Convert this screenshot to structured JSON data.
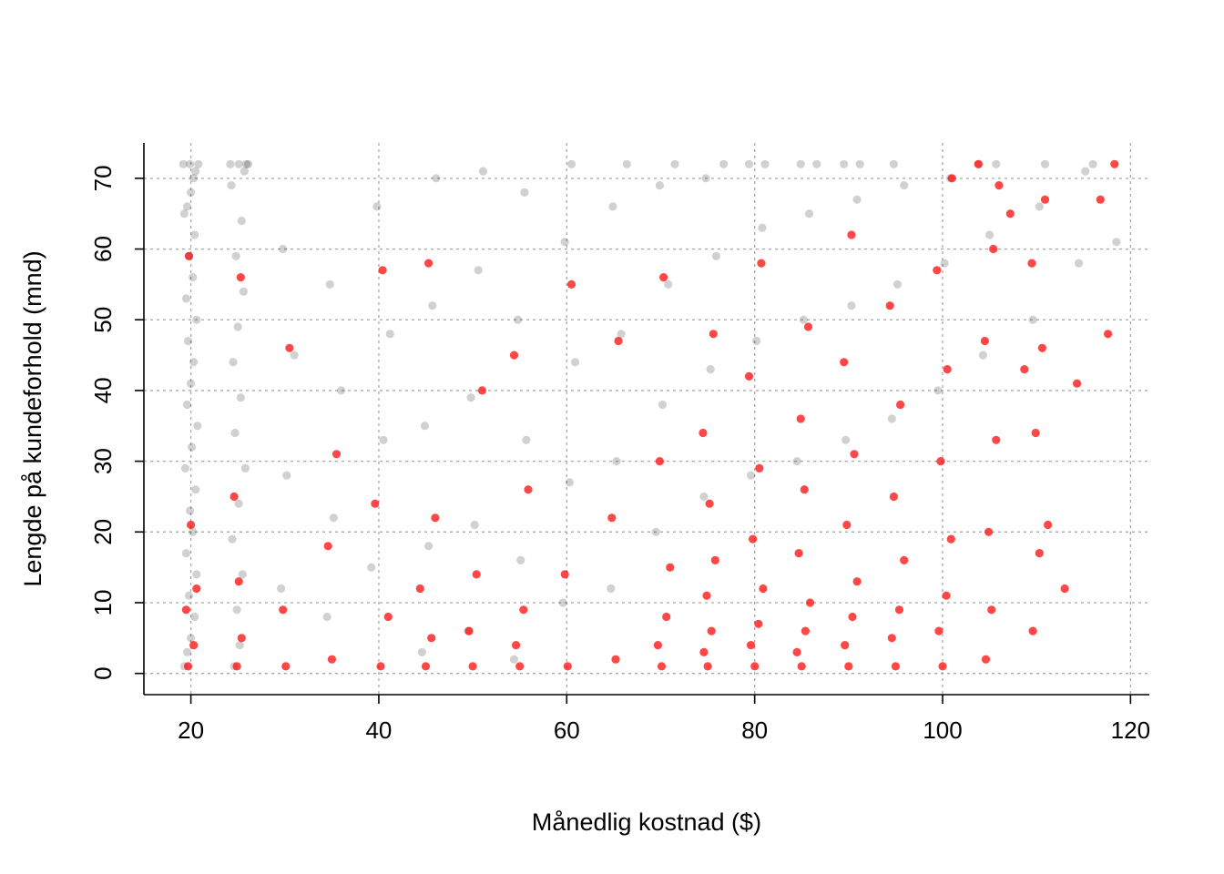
{
  "chart_data": {
    "type": "scatter",
    "title": "",
    "xlabel": "Månedlig kostnad ($)",
    "ylabel": "Lengde på kundeforhold (mnd)",
    "xlim": [
      15,
      122
    ],
    "ylim": [
      -3,
      75
    ],
    "x_ticks": [
      20,
      40,
      60,
      80,
      100,
      120
    ],
    "y_ticks": [
      0,
      10,
      20,
      30,
      40,
      50,
      60,
      70
    ],
    "x_tick_labels": [
      "20",
      "40",
      "60",
      "80",
      "100",
      "120"
    ],
    "y_tick_labels": [
      "0",
      "10",
      "20",
      "30",
      "40",
      "50",
      "60",
      "70"
    ],
    "grid": true,
    "series": [
      {
        "color": "#000000",
        "opacity": 0.18,
        "points": [
          [
            19.3,
            1
          ],
          [
            19.6,
            3
          ],
          [
            20.0,
            5
          ],
          [
            20.4,
            8
          ],
          [
            19.8,
            11
          ],
          [
            20.6,
            14
          ],
          [
            19.5,
            17
          ],
          [
            20.2,
            20
          ],
          [
            19.9,
            23
          ],
          [
            20.5,
            26
          ],
          [
            19.4,
            29
          ],
          [
            20.1,
            32
          ],
          [
            20.7,
            35
          ],
          [
            19.6,
            38
          ],
          [
            20.0,
            41
          ],
          [
            20.3,
            44
          ],
          [
            19.7,
            47
          ],
          [
            20.6,
            50
          ],
          [
            19.5,
            53
          ],
          [
            20.2,
            56
          ],
          [
            19.8,
            59
          ],
          [
            20.4,
            62
          ],
          [
            19.3,
            65
          ],
          [
            20.0,
            68
          ],
          [
            20.5,
            71
          ],
          [
            19.9,
            72
          ],
          [
            20.8,
            72
          ],
          [
            19.2,
            72
          ],
          [
            20.3,
            70
          ],
          [
            19.6,
            66
          ],
          [
            24.6,
            1
          ],
          [
            25.2,
            4
          ],
          [
            24.9,
            9
          ],
          [
            25.5,
            14
          ],
          [
            24.4,
            19
          ],
          [
            25.1,
            24
          ],
          [
            25.8,
            29
          ],
          [
            24.7,
            34
          ],
          [
            25.3,
            39
          ],
          [
            24.5,
            44
          ],
          [
            25.0,
            49
          ],
          [
            25.6,
            54
          ],
          [
            24.8,
            59
          ],
          [
            25.4,
            64
          ],
          [
            24.3,
            69
          ],
          [
            25.1,
            72
          ],
          [
            25.9,
            72
          ],
          [
            24.2,
            72
          ],
          [
            26.1,
            72
          ],
          [
            25.7,
            71
          ],
          [
            29.6,
            12
          ],
          [
            30.2,
            28
          ],
          [
            31.0,
            45
          ],
          [
            29.8,
            60
          ],
          [
            34.5,
            8
          ],
          [
            35.2,
            22
          ],
          [
            36.0,
            40
          ],
          [
            34.8,
            55
          ],
          [
            39.2,
            15
          ],
          [
            40.5,
            33
          ],
          [
            41.2,
            48
          ],
          [
            39.8,
            66
          ],
          [
            44.6,
            3
          ],
          [
            45.3,
            18
          ],
          [
            44.9,
            35
          ],
          [
            45.7,
            52
          ],
          [
            46.1,
            70
          ],
          [
            49.5,
            6
          ],
          [
            50.2,
            21
          ],
          [
            49.8,
            39
          ],
          [
            50.6,
            57
          ],
          [
            51.1,
            71
          ],
          [
            54.4,
            2
          ],
          [
            55.1,
            16
          ],
          [
            55.7,
            33
          ],
          [
            54.8,
            50
          ],
          [
            55.5,
            68
          ],
          [
            59.6,
            10
          ],
          [
            60.3,
            27
          ],
          [
            60.9,
            44
          ],
          [
            59.8,
            61
          ],
          [
            60.5,
            72
          ],
          [
            64.7,
            12
          ],
          [
            65.3,
            30
          ],
          [
            65.8,
            48
          ],
          [
            64.9,
            66
          ],
          [
            66.4,
            72
          ],
          [
            69.5,
            20
          ],
          [
            70.2,
            38
          ],
          [
            70.8,
            55
          ],
          [
            69.9,
            69
          ],
          [
            71.5,
            72
          ],
          [
            74.6,
            25
          ],
          [
            75.3,
            43
          ],
          [
            75.9,
            59
          ],
          [
            74.8,
            70
          ],
          [
            76.7,
            72
          ],
          [
            79.6,
            28
          ],
          [
            80.2,
            47
          ],
          [
            80.8,
            63
          ],
          [
            79.4,
            72
          ],
          [
            81.1,
            72
          ],
          [
            84.5,
            30
          ],
          [
            85.2,
            50
          ],
          [
            85.8,
            65
          ],
          [
            84.9,
            72
          ],
          [
            86.6,
            72
          ],
          [
            89.7,
            33
          ],
          [
            90.3,
            52
          ],
          [
            90.9,
            67
          ],
          [
            89.5,
            72
          ],
          [
            91.2,
            72
          ],
          [
            94.6,
            36
          ],
          [
            95.2,
            55
          ],
          [
            95.9,
            69
          ],
          [
            94.8,
            72
          ],
          [
            99.5,
            40
          ],
          [
            100.2,
            58
          ],
          [
            100.8,
            70
          ],
          [
            104.3,
            45
          ],
          [
            105.0,
            62
          ],
          [
            105.7,
            72
          ],
          [
            103.9,
            72
          ],
          [
            109.6,
            50
          ],
          [
            110.3,
            66
          ],
          [
            110.9,
            72
          ],
          [
            114.5,
            58
          ],
          [
            115.2,
            71
          ],
          [
            116.0,
            72
          ],
          [
            118.5,
            61
          ]
        ]
      },
      {
        "color": "#ff0000",
        "opacity": 0.72,
        "points": [
          [
            19.7,
            1
          ],
          [
            20.3,
            4
          ],
          [
            19.5,
            9
          ],
          [
            20.6,
            12
          ],
          [
            20.0,
            21
          ],
          [
            19.8,
            59
          ],
          [
            24.9,
            1
          ],
          [
            25.4,
            5
          ],
          [
            25.1,
            13
          ],
          [
            24.6,
            25
          ],
          [
            25.3,
            56
          ],
          [
            30.1,
            1
          ],
          [
            29.8,
            9
          ],
          [
            30.5,
            46
          ],
          [
            35.0,
            2
          ],
          [
            34.6,
            18
          ],
          [
            35.5,
            31
          ],
          [
            40.2,
            1
          ],
          [
            41.0,
            8
          ],
          [
            39.6,
            24
          ],
          [
            40.4,
            57
          ],
          [
            45.0,
            1
          ],
          [
            45.6,
            5
          ],
          [
            44.4,
            12
          ],
          [
            46.0,
            22
          ],
          [
            45.3,
            58
          ],
          [
            50.0,
            1
          ],
          [
            49.6,
            6
          ],
          [
            50.4,
            14
          ],
          [
            51.0,
            40
          ],
          [
            55.0,
            1
          ],
          [
            54.6,
            4
          ],
          [
            55.4,
            9
          ],
          [
            55.9,
            26
          ],
          [
            54.4,
            45
          ],
          [
            60.1,
            1
          ],
          [
            59.8,
            14
          ],
          [
            60.5,
            55
          ],
          [
            65.2,
            2
          ],
          [
            64.8,
            22
          ],
          [
            65.5,
            47
          ],
          [
            70.1,
            1
          ],
          [
            69.7,
            4
          ],
          [
            70.6,
            8
          ],
          [
            71.0,
            15
          ],
          [
            69.9,
            30
          ],
          [
            70.3,
            56
          ],
          [
            75.0,
            1
          ],
          [
            74.6,
            3
          ],
          [
            75.4,
            6
          ],
          [
            74.9,
            11
          ],
          [
            75.8,
            16
          ],
          [
            75.2,
            24
          ],
          [
            74.5,
            34
          ],
          [
            75.6,
            48
          ],
          [
            80.0,
            1
          ],
          [
            79.6,
            4
          ],
          [
            80.4,
            7
          ],
          [
            80.9,
            12
          ],
          [
            79.8,
            19
          ],
          [
            80.5,
            29
          ],
          [
            79.4,
            42
          ],
          [
            80.7,
            58
          ],
          [
            85.0,
            1
          ],
          [
            84.5,
            3
          ],
          [
            85.4,
            6
          ],
          [
            85.9,
            10
          ],
          [
            84.7,
            17
          ],
          [
            85.3,
            26
          ],
          [
            84.9,
            36
          ],
          [
            85.7,
            49
          ],
          [
            90.0,
            1
          ],
          [
            89.6,
            4
          ],
          [
            90.4,
            8
          ],
          [
            90.9,
            13
          ],
          [
            89.8,
            21
          ],
          [
            90.6,
            31
          ],
          [
            89.5,
            44
          ],
          [
            90.3,
            62
          ],
          [
            95.0,
            1
          ],
          [
            94.6,
            5
          ],
          [
            95.4,
            9
          ],
          [
            95.9,
            16
          ],
          [
            94.8,
            25
          ],
          [
            95.5,
            38
          ],
          [
            94.4,
            52
          ],
          [
            100.0,
            1
          ],
          [
            99.6,
            6
          ],
          [
            100.4,
            11
          ],
          [
            100.9,
            19
          ],
          [
            99.8,
            30
          ],
          [
            100.5,
            43
          ],
          [
            99.4,
            57
          ],
          [
            101.0,
            70
          ],
          [
            104.6,
            2
          ],
          [
            105.2,
            9
          ],
          [
            104.9,
            20
          ],
          [
            105.7,
            33
          ],
          [
            104.5,
            47
          ],
          [
            105.4,
            60
          ],
          [
            106.0,
            69
          ],
          [
            109.6,
            6
          ],
          [
            110.3,
            17
          ],
          [
            109.9,
            34
          ],
          [
            110.6,
            46
          ],
          [
            109.5,
            58
          ],
          [
            110.9,
            67
          ],
          [
            111.2,
            21
          ],
          [
            113.0,
            12
          ],
          [
            114.3,
            41
          ],
          [
            116.8,
            67
          ],
          [
            117.6,
            48
          ],
          [
            118.3,
            72
          ],
          [
            108.7,
            43
          ],
          [
            103.8,
            72
          ],
          [
            107.2,
            65
          ]
        ]
      }
    ]
  }
}
